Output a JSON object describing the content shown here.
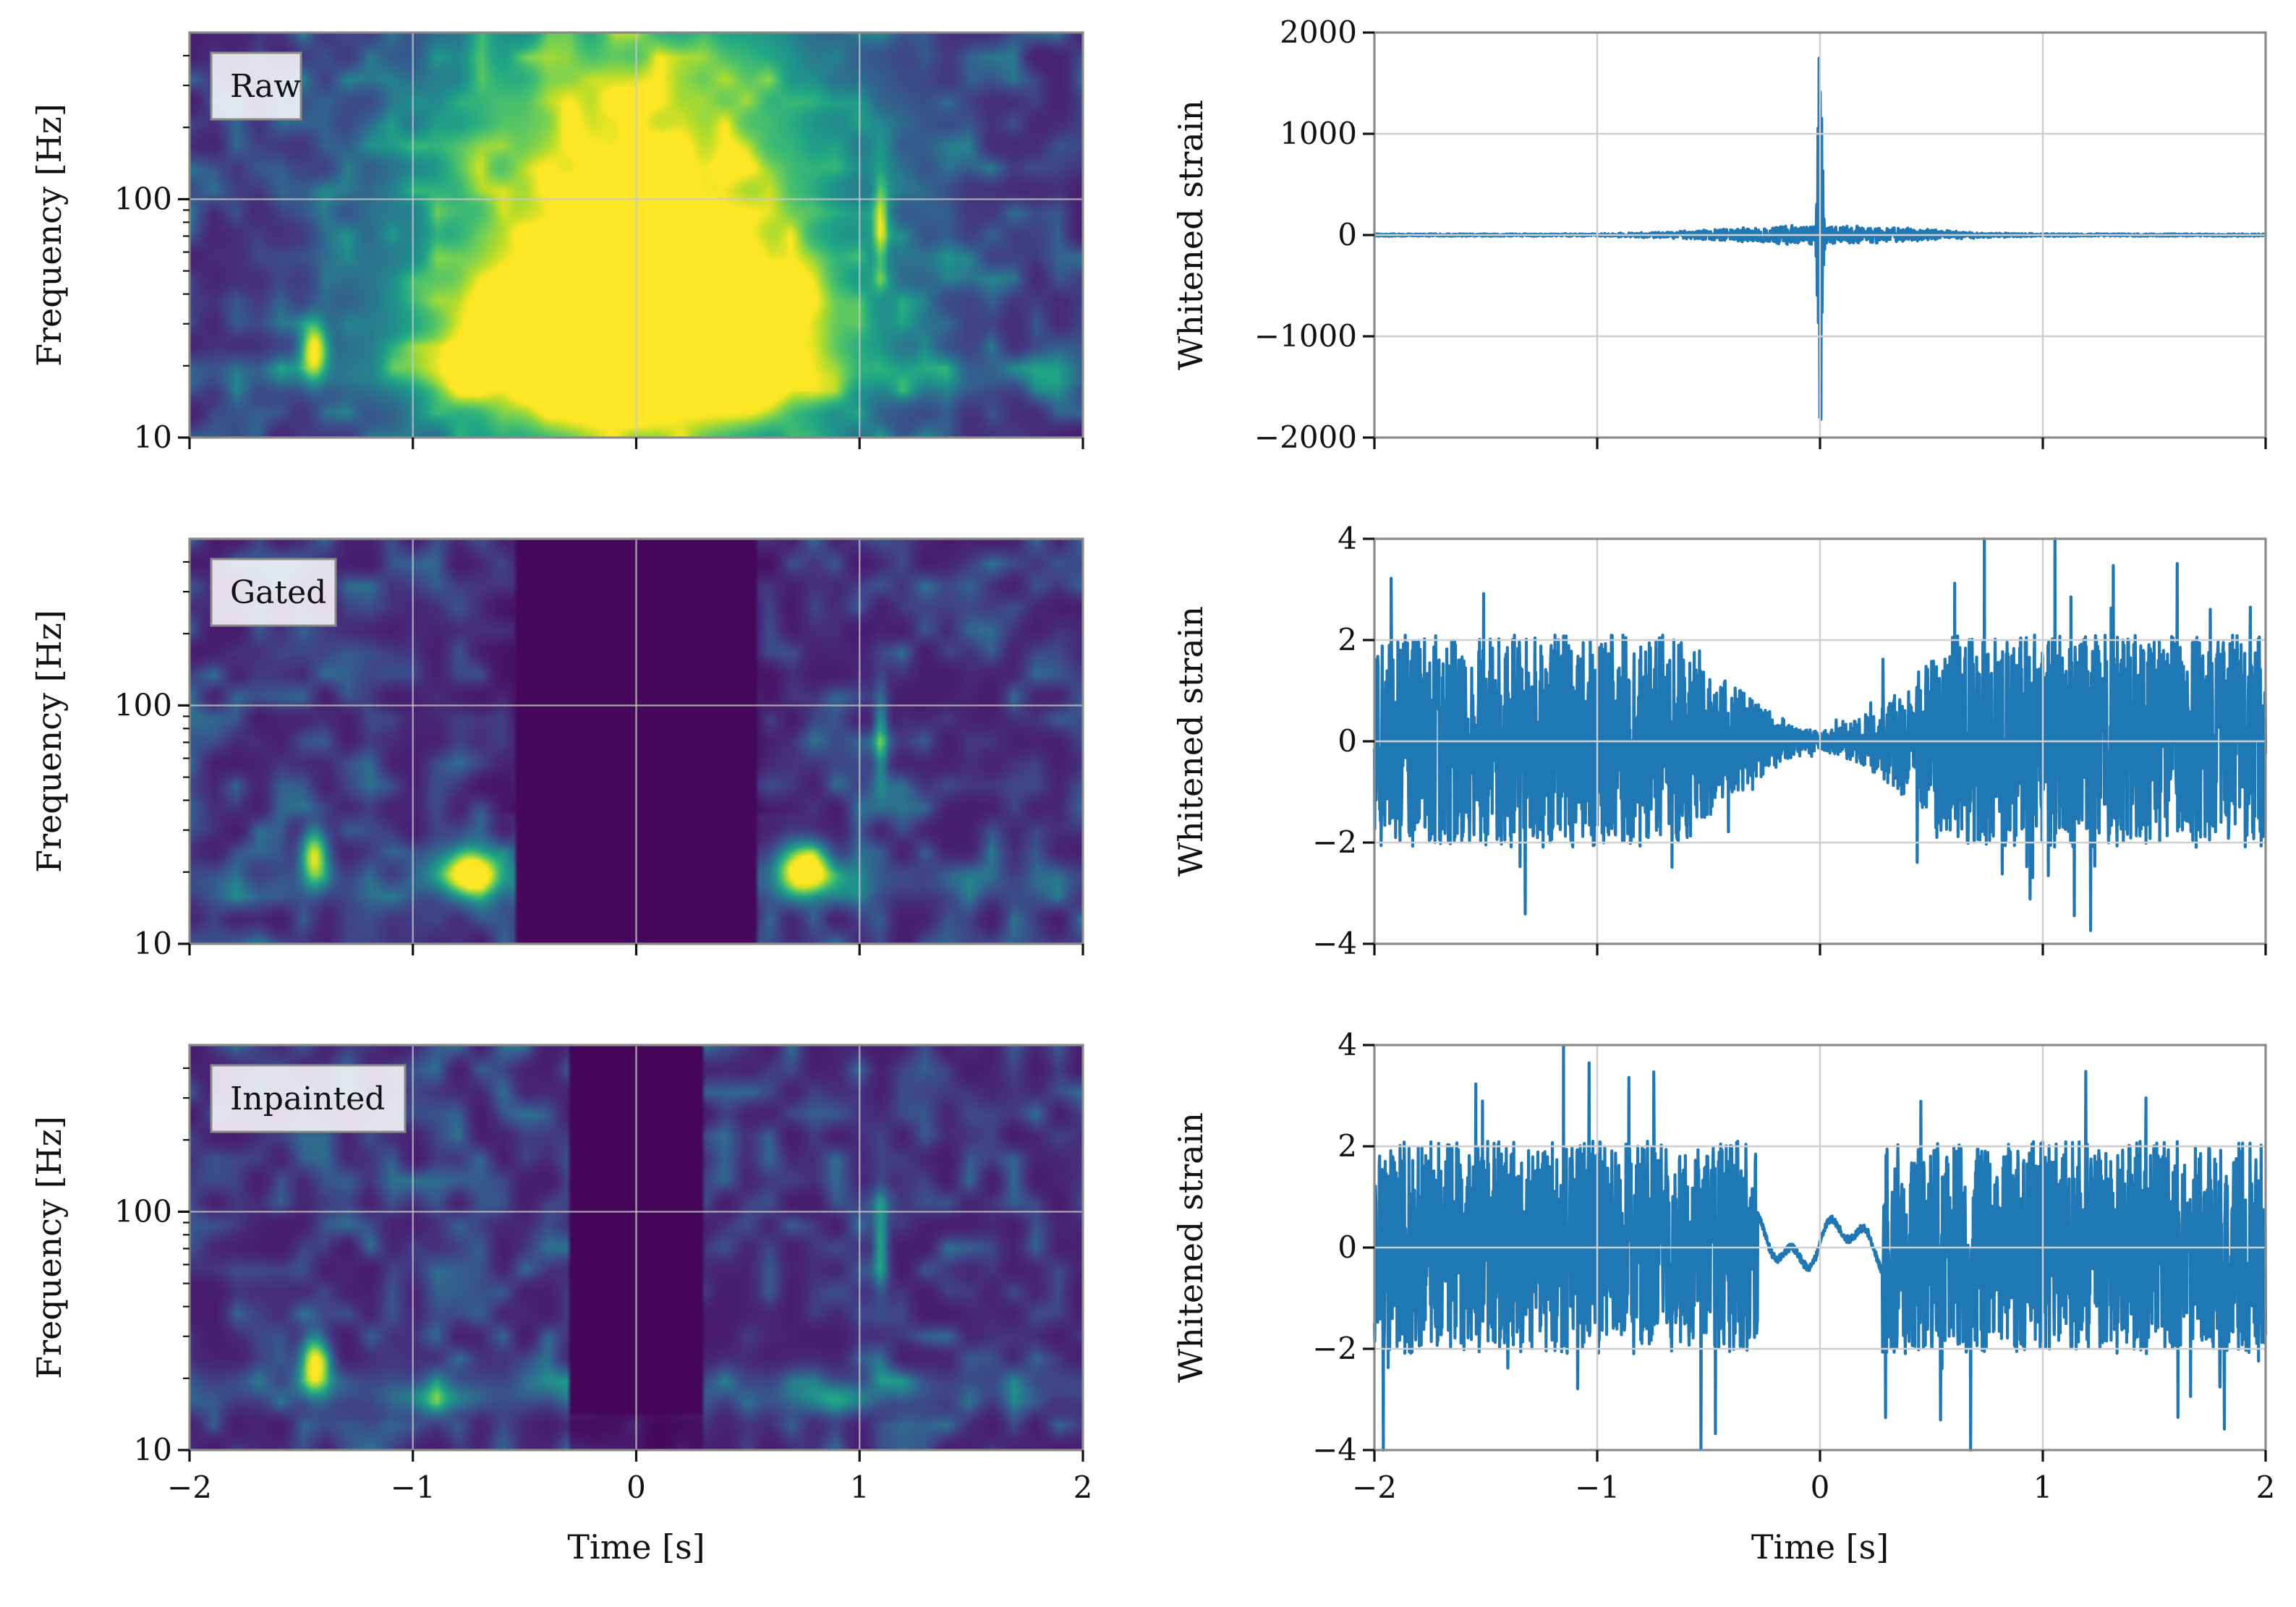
{
  "figure": {
    "description_free": true
  },
  "chart_data": [
    {
      "type": "heatmap",
      "panel": "raw-spectrogram",
      "label": "Raw",
      "ylabel": "Frequency [Hz]",
      "xlabel": "",
      "xlim": [
        -2,
        2
      ],
      "ylim": [
        10,
        500
      ],
      "yscale": "log",
      "xticks": [
        -2,
        -1,
        0,
        1,
        2
      ],
      "xtick_labels": [],
      "yticks": [
        10,
        100
      ],
      "ytick_labels": [
        "10",
        "100"
      ],
      "grid": true,
      "blobs": [
        {
          "t": 0.0,
          "f": 80,
          "dt": 0.95,
          "df": 1.05,
          "v": 1.0
        },
        {
          "t": 0.0,
          "f": 25,
          "dt": 0.85,
          "df": 0.35,
          "v": 1.0
        },
        {
          "t": -1.45,
          "f": 23,
          "dt": 0.06,
          "df": 0.12,
          "v": 0.85
        },
        {
          "t": 1.1,
          "f": 75,
          "dt": 0.03,
          "df": 0.2,
          "v": 0.45
        }
      ]
    },
    {
      "type": "line",
      "panel": "raw-strain",
      "ylabel": "Whitened strain",
      "xlabel": "",
      "xlim": [
        -2,
        2
      ],
      "ylim": [
        -2000,
        2000
      ],
      "xticks": [
        -2,
        -1,
        0,
        1,
        2
      ],
      "xtick_labels": [],
      "yticks": [
        -2000,
        -1000,
        0,
        1000,
        2000
      ],
      "ytick_labels": [
        "−2000",
        "−1000",
        "0",
        "1000",
        "2000"
      ],
      "grid": true,
      "color": "#1f77b4",
      "envelope": {
        "kind": "glitch",
        "noise": 12,
        "peak": 2000,
        "center": 0.0,
        "width": 0.6
      }
    },
    {
      "type": "heatmap",
      "panel": "gated-spectrogram",
      "label": "Gated",
      "ylabel": "Frequency [Hz]",
      "xlabel": "",
      "xlim": [
        -2,
        2
      ],
      "ylim": [
        10,
        500
      ],
      "yscale": "log",
      "xticks": [
        -2,
        -1,
        0,
        1,
        2
      ],
      "xtick_labels": [],
      "yticks": [
        10,
        100
      ],
      "ytick_labels": [
        "10",
        "100"
      ],
      "grid": true,
      "gate": [
        -0.55,
        0.55
      ],
      "blobs": [
        {
          "t": -1.45,
          "f": 23,
          "dt": 0.06,
          "df": 0.12,
          "v": 0.85
        },
        {
          "t": -0.75,
          "f": 20,
          "dt": 0.12,
          "df": 0.11,
          "v": 1.0
        },
        {
          "t": 0.75,
          "f": 20,
          "dt": 0.12,
          "df": 0.11,
          "v": 1.0
        },
        {
          "t": 1.1,
          "f": 75,
          "dt": 0.03,
          "df": 0.2,
          "v": 0.45
        }
      ]
    },
    {
      "type": "line",
      "panel": "gated-strain",
      "ylabel": "Whitened strain",
      "xlabel": "",
      "xlim": [
        -2,
        2
      ],
      "ylim": [
        -4,
        4
      ],
      "xticks": [
        -2,
        -1,
        0,
        1,
        2
      ],
      "xtick_labels": [],
      "yticks": [
        -4,
        -2,
        0,
        2,
        4
      ],
      "ytick_labels": [
        "−4",
        "−2",
        "0",
        "2",
        "4"
      ],
      "grid": true,
      "color": "#1f77b4",
      "envelope": {
        "kind": "gate",
        "amplitude": 2.0,
        "gate_half_width": 0.6,
        "floor": 0.1
      }
    },
    {
      "type": "heatmap",
      "panel": "inpainted-spectrogram",
      "label": "Inpainted",
      "ylabel": "Frequency [Hz]",
      "xlabel": "Time [s]",
      "xlim": [
        -2,
        2
      ],
      "ylim": [
        10,
        500
      ],
      "yscale": "log",
      "xticks": [
        -2,
        -1,
        0,
        1,
        2
      ],
      "xtick_labels": [
        "−2",
        "−1",
        "0",
        "1",
        "2"
      ],
      "yticks": [
        10,
        100
      ],
      "ytick_labels": [
        "10",
        "100"
      ],
      "grid": true,
      "hole": [
        -0.3,
        0.3
      ],
      "blobs": [
        {
          "t": -1.45,
          "f": 23,
          "dt": 0.06,
          "df": 0.12,
          "v": 0.85
        },
        {
          "t": 1.1,
          "f": 75,
          "dt": 0.03,
          "df": 0.2,
          "v": 0.45
        },
        {
          "t": -0.9,
          "f": 16,
          "dt": 0.2,
          "df": 0.06,
          "v": 0.35
        },
        {
          "t": 0.9,
          "f": 16,
          "dt": 0.2,
          "df": 0.06,
          "v": 0.35
        }
      ]
    },
    {
      "type": "line",
      "panel": "inpainted-strain",
      "ylabel": "Whitened strain",
      "xlabel": "Time [s]",
      "xlim": [
        -2,
        2
      ],
      "ylim": [
        -4,
        4
      ],
      "xticks": [
        -2,
        -1,
        0,
        1,
        2
      ],
      "xtick_labels": [
        "−2",
        "−1",
        "0",
        "1",
        "2"
      ],
      "yticks": [
        -4,
        -2,
        0,
        2,
        4
      ],
      "ytick_labels": [
        "−4",
        "−2",
        "0",
        "2",
        "4"
      ],
      "grid": true,
      "color": "#1f77b4",
      "envelope": {
        "kind": "inpaint",
        "amplitude": 2.0,
        "hole": [
          -0.28,
          0.28
        ],
        "inner_amplitude": 0.6
      }
    }
  ]
}
